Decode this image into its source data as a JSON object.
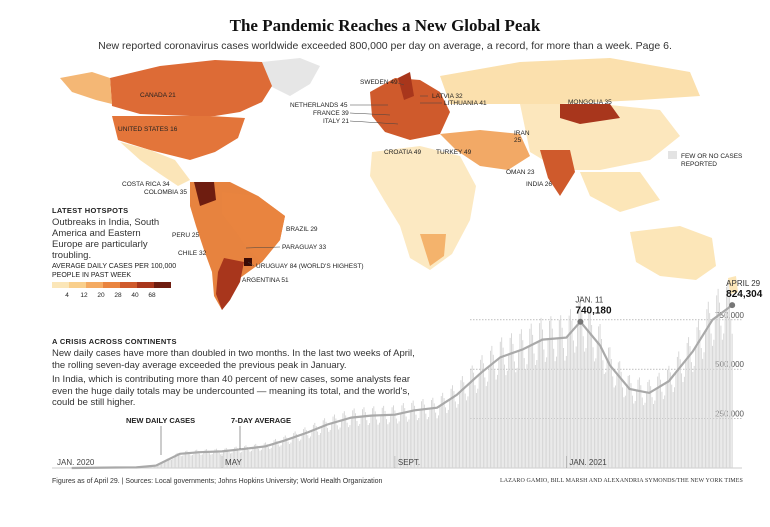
{
  "header": {
    "title": "The Pandemic Reaches a New Global Peak",
    "subtitle": "New reported coronavirus cases worldwide exceeded 800,000 per day on average, a record, for more than a week. Page 6."
  },
  "map": {
    "legend_title": "AVERAGE DAILY CASES PER 100,000 PEOPLE IN PAST WEEK",
    "legend_ticks": [
      "4",
      "12",
      "20",
      "28",
      "40",
      "68"
    ],
    "legend_colors": [
      "#fbe6b8",
      "#f9cf8c",
      "#f4aa62",
      "#e9843f",
      "#cf5a2c",
      "#a8361c",
      "#6e1d10"
    ],
    "no_data_label": "FEW OR NO CASES REPORTED",
    "no_data_color": "#e3e3e3",
    "labels": [
      "CANADA 21",
      "UNITED STATES 16",
      "SWEDEN 49",
      "LATVIA 32",
      "LITHUANIA 41",
      "NETHERLANDS 45",
      "FRANCE 39",
      "ITALY 21",
      "MONGOLIA 35",
      "IRAN",
      "25",
      "CROATIA 49",
      "TURKEY 49",
      "OMAN 23",
      "INDIA 26",
      "COSTA RICA 34",
      "COLOMBIA 35",
      "BRAZIL 29",
      "PERU 25",
      "PARAGUAY 33",
      "CHILE 32",
      "URUGUAY 84 (WORLD'S HIGHEST)",
      "ARGENTINA 51"
    ],
    "hotspots": {
      "title": "LATEST HOTSPOTS",
      "text": "Outbreaks in India, South America and Eastern Europe are particularly troubling."
    }
  },
  "crisis": {
    "title": "A CRISIS ACROSS CONTINENTS",
    "p1": "New daily cases have more than doubled in two months. In the last two weeks of April, the rolling seven-day average exceeded the previous peak in January.",
    "p2": "In India, which is contributing more than 40 percent of new cases, some analysts fear even the huge daily totals may be undercounted — meaning its total, and the world's, could be still higher."
  },
  "chart_data": {
    "type": "bar",
    "title": "",
    "series": [
      {
        "name": "NEW DAILY CASES",
        "type": "bar",
        "color": "#d4d4d4"
      },
      {
        "name": "7-DAY AVERAGE",
        "type": "line",
        "color": "#a9a9a9"
      }
    ],
    "x_ticks": [
      "JAN. 2020",
      "MAY",
      "SEPT.",
      "JAN. 2021"
    ],
    "y_ticks": [
      "250,000",
      "500,000",
      "750,000"
    ],
    "ylim": [
      0,
      830000
    ],
    "annotations": [
      {
        "label": "JAN. 11",
        "value": "740,180",
        "x": "2021-01-11",
        "y": 740180
      },
      {
        "label": "APRIL 29",
        "value": "824,304",
        "x": "2021-04-29",
        "y": 824304
      }
    ],
    "seven_day_average": [
      [
        "2020-01-15",
        0
      ],
      [
        "2020-02-15",
        2500
      ],
      [
        "2020-03-01",
        3000
      ],
      [
        "2020-03-15",
        12000
      ],
      [
        "2020-04-01",
        72000
      ],
      [
        "2020-04-15",
        80000
      ],
      [
        "2020-05-01",
        84000
      ],
      [
        "2020-05-15",
        95000
      ],
      [
        "2020-06-01",
        110000
      ],
      [
        "2020-06-15",
        140000
      ],
      [
        "2020-07-01",
        180000
      ],
      [
        "2020-07-15",
        220000
      ],
      [
        "2020-08-01",
        255000
      ],
      [
        "2020-08-15",
        265000
      ],
      [
        "2020-09-01",
        270000
      ],
      [
        "2020-09-15",
        292000
      ],
      [
        "2020-10-01",
        305000
      ],
      [
        "2020-10-15",
        370000
      ],
      [
        "2020-11-01",
        480000
      ],
      [
        "2020-11-15",
        560000
      ],
      [
        "2020-12-01",
        600000
      ],
      [
        "2020-12-15",
        650000
      ],
      [
        "2021-01-01",
        660000
      ],
      [
        "2021-01-11",
        740180
      ],
      [
        "2021-01-25",
        620000
      ],
      [
        "2021-02-01",
        520000
      ],
      [
        "2021-02-15",
        400000
      ],
      [
        "2021-03-01",
        380000
      ],
      [
        "2021-03-15",
        440000
      ],
      [
        "2021-04-01",
        590000
      ],
      [
        "2021-04-15",
        750000
      ],
      [
        "2021-04-29",
        824304
      ]
    ],
    "annotation_color": "#777777"
  },
  "footer": {
    "source": "Figures as of April 29. | Sources: Local governments; Johns Hopkins University; World Health Organization",
    "credit": "LAZARO GAMIO, BILL MARSH AND ALEXANDRIA SYMONDS/THE NEW YORK TIMES"
  }
}
